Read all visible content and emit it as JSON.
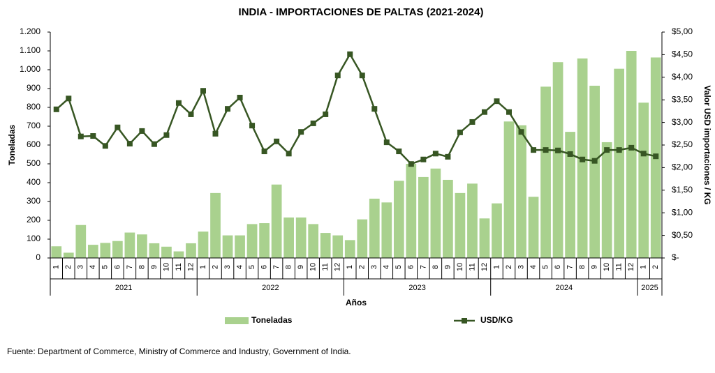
{
  "chart_data": {
    "type": "bar-line",
    "title": "INDIA - IMPORTACIONES DE PALTAS (2021-2024)",
    "y_label": "Toneladas",
    "y2_label": "Valor USD importaciones / KG",
    "x_label": "Años",
    "source": "Fuente:  Department of Commerce, Ministry of Commerce and Industry, Government of India.",
    "categories": [
      "1",
      "2",
      "3",
      "4",
      "5",
      "6",
      "7",
      "8",
      "9",
      "10",
      "11",
      "12",
      "1",
      "2",
      "3",
      "4",
      "5",
      "6",
      "7",
      "8",
      "9",
      "10",
      "11",
      "12",
      "1",
      "2",
      "3",
      "4",
      "5",
      "6",
      "7",
      "8",
      "9",
      "10",
      "11",
      "12",
      "1",
      "2",
      "3",
      "4",
      "5",
      "6",
      "7",
      "8",
      "9",
      "10",
      "11",
      "12",
      "1",
      "2"
    ],
    "years": [
      "2021",
      "2022",
      "2023",
      "2024",
      "2025"
    ],
    "series": [
      {
        "name": "Toneladas",
        "kind": "bar",
        "color": "#a9d18e",
        "values": [
          62,
          28,
          175,
          70,
          80,
          90,
          135,
          125,
          78,
          60,
          35,
          78,
          140,
          345,
          120,
          120,
          180,
          185,
          390,
          215,
          215,
          180,
          133,
          120,
          95,
          205,
          315,
          295,
          410,
          500,
          430,
          475,
          415,
          345,
          395,
          210,
          290,
          725,
          705,
          325,
          910,
          1040,
          670,
          1060,
          915,
          615,
          1005,
          1100,
          825,
          1065
        ]
      },
      {
        "name": "USD/KG",
        "kind": "line",
        "axis": "y2",
        "color": "#375623",
        "values": [
          3.29,
          3.53,
          2.69,
          2.7,
          2.48,
          2.89,
          2.53,
          2.81,
          2.52,
          2.72,
          3.43,
          3.18,
          3.7,
          2.75,
          3.3,
          3.55,
          2.93,
          2.36,
          2.58,
          2.31,
          2.79,
          2.98,
          3.18,
          4.04,
          4.51,
          4.04,
          3.3,
          2.56,
          2.36,
          2.08,
          2.18,
          2.31,
          2.24,
          2.78,
          3.01,
          3.23,
          3.47,
          3.23,
          2.79,
          2.39,
          2.39,
          2.38,
          2.3,
          2.18,
          2.15,
          2.39,
          2.39,
          2.44,
          2.31,
          2.25
        ]
      }
    ],
    "ylim": [
      0,
      1200
    ],
    "yticks": [
      0,
      100,
      200,
      300,
      400,
      500,
      600,
      700,
      800,
      900,
      {
        "value": 1000,
        "label": "1.000"
      },
      {
        "value": 1100,
        "label": "1.100"
      },
      {
        "value": 1200,
        "label": "1.200"
      }
    ],
    "y2lim": [
      0,
      5
    ],
    "y2ticks": [
      {
        "value": 0,
        "label": "$-"
      },
      {
        "value": 0.5,
        "label": "$0,50"
      },
      {
        "value": 1,
        "label": "$1,00"
      },
      {
        "value": 1.5,
        "label": "$1,50"
      },
      {
        "value": 2,
        "label": "$2,00"
      },
      {
        "value": 2.5,
        "label": "$2,50"
      },
      {
        "value": 3,
        "label": "$3,00"
      },
      {
        "value": 3.5,
        "label": "$3,50"
      },
      {
        "value": 4,
        "label": "$4,00"
      },
      {
        "value": 4.5,
        "label": "$4,50"
      },
      {
        "value": 5,
        "label": "$5,00"
      }
    ],
    "grid": false
  }
}
